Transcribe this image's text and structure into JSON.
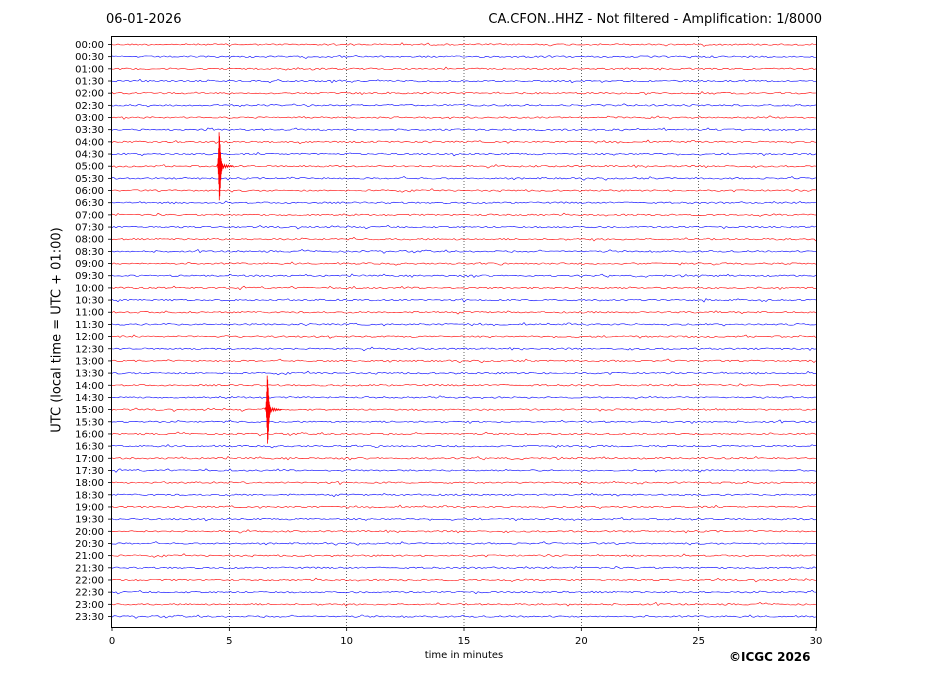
{
  "header": {
    "date": "06-01-2026",
    "title": "CA.CFON..HHZ - Not filtered - Amplification: 1/8000"
  },
  "footer": {
    "copyright": "©ICGC 2026"
  },
  "chart_data": {
    "type": "line",
    "title": "CA.CFON..HHZ - Not filtered - Amplification: 1/8000",
    "xlabel": "time in minutes",
    "ylabel": "UTC (local time = UTC + 01:00)",
    "xlim": [
      0,
      30
    ],
    "xticks": [
      "0",
      "5",
      "10",
      "15",
      "20",
      "25",
      "30"
    ],
    "grid_x": true,
    "colors": [
      "#ff0000",
      "#0000ff"
    ],
    "rows": [
      "00:00",
      "00:30",
      "01:00",
      "01:30",
      "02:00",
      "02:30",
      "03:00",
      "03:30",
      "04:00",
      "04:30",
      "05:00",
      "05:30",
      "06:00",
      "06:30",
      "07:00",
      "07:30",
      "08:00",
      "08:30",
      "09:00",
      "09:30",
      "10:00",
      "10:30",
      "11:00",
      "11:30",
      "12:00",
      "12:30",
      "13:00",
      "13:30",
      "14:00",
      "14:30",
      "15:00",
      "15:30",
      "16:00",
      "16:30",
      "17:00",
      "17:30",
      "18:00",
      "18:30",
      "19:00",
      "19:30",
      "20:00",
      "20:30",
      "21:00",
      "21:30",
      "22:00",
      "22:30",
      "23:00",
      "23:30"
    ],
    "events": [
      {
        "row": "05:00",
        "minute": 4.5,
        "color": "#ff0000"
      },
      {
        "row": "15:00",
        "minute": 6.55,
        "color": "#ff0000"
      }
    ]
  }
}
